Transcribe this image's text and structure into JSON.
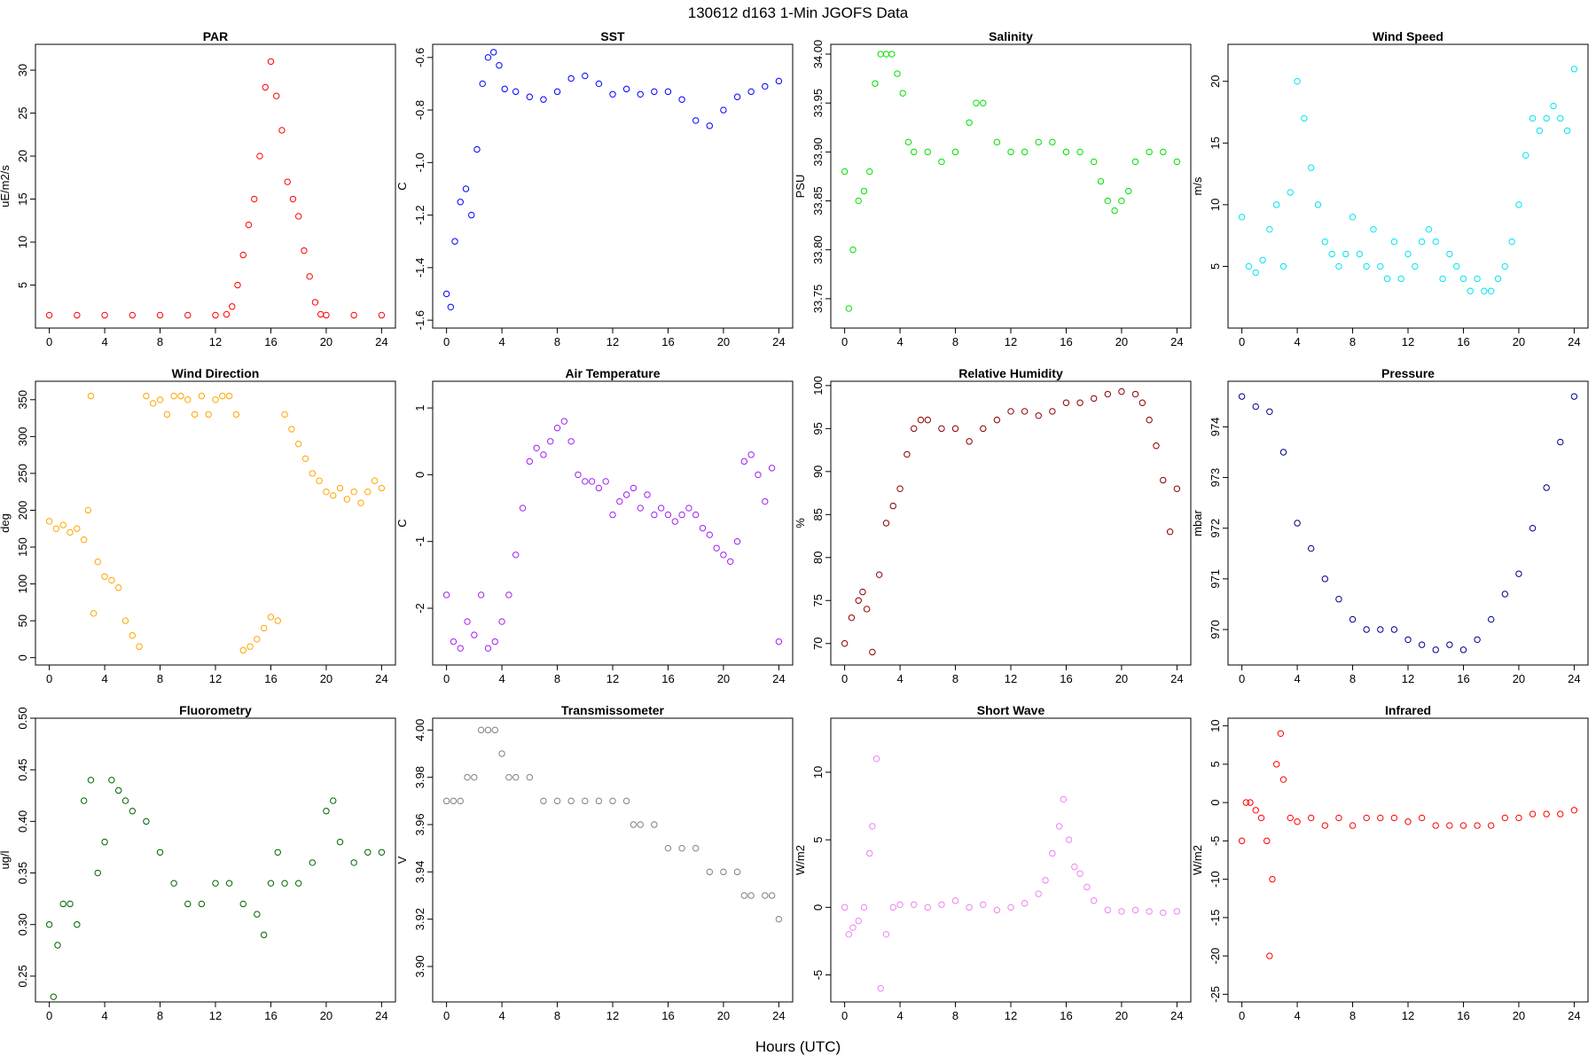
{
  "figure": {
    "title": "130612   d163   1-Min  JGOFS Data",
    "xlabel": "Hours (UTC)"
  },
  "chart_data": [
    {
      "type": "scatter",
      "title": "PAR",
      "ylabel": "uE/m2/s",
      "color": "#ff0000",
      "xlim": [
        -1,
        25
      ],
      "ylim": [
        0,
        33
      ],
      "yticks": [
        5,
        10,
        15,
        20,
        25,
        30
      ],
      "xticks": [
        0,
        4,
        8,
        12,
        16,
        20,
        24
      ],
      "x": [
        0,
        2,
        4,
        6,
        8,
        10,
        12,
        12.8,
        13.2,
        13.6,
        14,
        14.4,
        14.8,
        15.2,
        15.6,
        16,
        16.4,
        16.8,
        17.2,
        17.6,
        18,
        18.4,
        18.8,
        19.2,
        19.6,
        20,
        22,
        24
      ],
      "y": [
        1.5,
        1.5,
        1.5,
        1.5,
        1.5,
        1.5,
        1.5,
        1.6,
        2.5,
        5,
        8.5,
        12,
        15,
        20,
        28,
        31,
        27,
        23,
        17,
        15,
        13,
        9,
        6,
        3,
        1.6,
        1.5,
        1.5,
        1.5
      ]
    },
    {
      "type": "scatter",
      "title": "SST",
      "ylabel": "C",
      "color": "#0000ff",
      "xlim": [
        -1,
        25
      ],
      "ylim": [
        -1.63,
        -0.55
      ],
      "yticks": [
        -1.6,
        -1.4,
        -1.2,
        -1.0,
        -0.8,
        -0.6
      ],
      "xticks": [
        0,
        4,
        8,
        12,
        16,
        20,
        24
      ],
      "x": [
        0,
        0.3,
        0.6,
        1,
        1.4,
        1.8,
        2.2,
        2.6,
        3,
        3.4,
        3.8,
        4.2,
        5,
        6,
        7,
        8,
        9,
        10,
        11,
        12,
        13,
        14,
        15,
        16,
        17,
        18,
        19,
        20,
        21,
        22,
        23,
        24
      ],
      "y": [
        -1.5,
        -1.55,
        -1.3,
        -1.15,
        -1.1,
        -1.2,
        -0.95,
        -0.7,
        -0.6,
        -0.58,
        -0.63,
        -0.72,
        -0.73,
        -0.75,
        -0.76,
        -0.73,
        -0.68,
        -0.67,
        -0.7,
        -0.74,
        -0.72,
        -0.74,
        -0.73,
        -0.73,
        -0.76,
        -0.84,
        -0.86,
        -0.8,
        -0.75,
        -0.73,
        -0.71,
        -0.69
      ]
    },
    {
      "type": "scatter",
      "title": "Salinity",
      "ylabel": "PSU",
      "color": "#00e000",
      "xlim": [
        -1,
        25
      ],
      "ylim": [
        33.72,
        34.01
      ],
      "yticks": [
        33.75,
        33.8,
        33.85,
        33.9,
        33.95,
        34.0
      ],
      "xticks": [
        0,
        4,
        8,
        12,
        16,
        20,
        24
      ],
      "x": [
        0,
        0.3,
        0.6,
        1,
        1.4,
        1.8,
        2.2,
        2.6,
        3,
        3.4,
        3.8,
        4.2,
        4.6,
        5,
        6,
        7,
        8,
        9,
        9.5,
        10,
        11,
        12,
        13,
        14,
        15,
        16,
        17,
        18,
        18.5,
        19,
        19.5,
        20,
        20.5,
        21,
        22,
        23,
        24
      ],
      "y": [
        33.88,
        33.74,
        33.8,
        33.85,
        33.86,
        33.88,
        33.97,
        34.0,
        34.0,
        34.0,
        33.98,
        33.96,
        33.91,
        33.9,
        33.9,
        33.89,
        33.9,
        33.93,
        33.95,
        33.95,
        33.91,
        33.9,
        33.9,
        33.91,
        33.91,
        33.9,
        33.9,
        33.89,
        33.87,
        33.85,
        33.84,
        33.85,
        33.86,
        33.89,
        33.9,
        33.9,
        33.89
      ]
    },
    {
      "type": "scatter",
      "title": "Wind Speed",
      "ylabel": "m/s",
      "color": "#00e5ee",
      "xlim": [
        -1,
        25
      ],
      "ylim": [
        0,
        23
      ],
      "yticks": [
        5,
        10,
        15,
        20
      ],
      "xticks": [
        0,
        4,
        8,
        12,
        16,
        20,
        24
      ],
      "x": [
        0,
        0.5,
        1,
        1.5,
        2,
        2.5,
        3,
        3.5,
        4,
        4.5,
        5,
        5.5,
        6,
        6.5,
        7,
        7.5,
        8,
        8.5,
        9,
        9.5,
        10,
        10.5,
        11,
        11.5,
        12,
        12.5,
        13,
        13.5,
        14,
        14.5,
        15,
        15.5,
        16,
        16.5,
        17,
        17.5,
        18,
        18.5,
        19,
        19.5,
        20,
        20.5,
        21,
        21.5,
        22,
        22.5,
        23,
        23.5,
        24
      ],
      "y": [
        9,
        5,
        4.5,
        5.5,
        8,
        10,
        5,
        11,
        20,
        17,
        13,
        10,
        7,
        6,
        5,
        6,
        9,
        6,
        5,
        8,
        5,
        4,
        7,
        4,
        6,
        5,
        7,
        8,
        7,
        4,
        6,
        5,
        4,
        3,
        4,
        3,
        3,
        4,
        5,
        7,
        10,
        14,
        17,
        16,
        17,
        18,
        17,
        16,
        21
      ]
    },
    {
      "type": "scatter",
      "title": "Wind Direction",
      "ylabel": "deg",
      "color": "#ffa500",
      "xlim": [
        -1,
        25
      ],
      "ylim": [
        -10,
        375
      ],
      "yticks": [
        0,
        50,
        100,
        150,
        200,
        250,
        300,
        350
      ],
      "xticks": [
        0,
        4,
        8,
        12,
        16,
        20,
        24
      ],
      "x": [
        0,
        0.5,
        1,
        1.5,
        2,
        2.5,
        2.8,
        3,
        3.2,
        3.5,
        4,
        4.5,
        5,
        5.5,
        6,
        6.5,
        7,
        7.5,
        8,
        8.5,
        9,
        9.5,
        10,
        10.5,
        11,
        11.5,
        12,
        12.5,
        13,
        13.5,
        14,
        14.5,
        15,
        15.5,
        16,
        16.5,
        17,
        17.5,
        18,
        18.5,
        19,
        19.5,
        20,
        20.5,
        21,
        21.5,
        22,
        22.5,
        23,
        23.5,
        24
      ],
      "y": [
        185,
        175,
        180,
        170,
        175,
        160,
        200,
        355,
        60,
        130,
        110,
        105,
        95,
        50,
        30,
        15,
        355,
        345,
        350,
        330,
        355,
        355,
        350,
        330,
        355,
        330,
        350,
        355,
        355,
        330,
        10,
        15,
        25,
        40,
        55,
        50,
        330,
        310,
        290,
        270,
        250,
        240,
        225,
        220,
        230,
        215,
        225,
        210,
        225,
        240,
        230
      ]
    },
    {
      "type": "scatter",
      "title": "Air Temperature",
      "ylabel": "C",
      "color": "#a020f0",
      "xlim": [
        -1,
        25
      ],
      "ylim": [
        -2.85,
        1.4
      ],
      "yticks": [
        -2,
        -1,
        0,
        1
      ],
      "xticks": [
        0,
        4,
        8,
        12,
        16,
        20,
        24
      ],
      "x": [
        0,
        0.5,
        1,
        1.5,
        2,
        2.5,
        3,
        3.5,
        4,
        4.5,
        5,
        5.5,
        6,
        6.5,
        7,
        7.5,
        8,
        8.5,
        9,
        9.5,
        10,
        10.5,
        11,
        11.5,
        12,
        12.5,
        13,
        13.5,
        14,
        14.5,
        15,
        15.5,
        16,
        16.5,
        17,
        17.5,
        18,
        18.5,
        19,
        19.5,
        20,
        20.5,
        21,
        21.5,
        22,
        22.5,
        23,
        23.5,
        24
      ],
      "y": [
        -1.8,
        -2.5,
        -2.6,
        -2.2,
        -2.4,
        -1.8,
        -2.6,
        -2.5,
        -2.2,
        -1.8,
        -1.2,
        -0.5,
        0.2,
        0.4,
        0.3,
        0.5,
        0.7,
        0.8,
        0.5,
        0,
        -0.1,
        -0.1,
        -0.2,
        -0.1,
        -0.6,
        -0.4,
        -0.3,
        -0.2,
        -0.5,
        -0.3,
        -0.6,
        -0.5,
        -0.6,
        -0.7,
        -0.6,
        -0.5,
        -0.6,
        -0.8,
        -0.9,
        -1.1,
        -1.2,
        -1.3,
        -1.0,
        0.2,
        0.3,
        0,
        -0.4,
        0.1,
        -2.5
      ]
    },
    {
      "type": "scatter",
      "title": "Relative Humidity",
      "ylabel": "%",
      "color": "#8b0000",
      "xlim": [
        -1,
        25
      ],
      "ylim": [
        67.5,
        100.5
      ],
      "yticks": [
        70,
        75,
        80,
        85,
        90,
        95,
        100
      ],
      "xticks": [
        0,
        4,
        8,
        12,
        16,
        20,
        24
      ],
      "x": [
        0,
        0.5,
        1,
        1.3,
        1.6,
        2,
        2.5,
        3,
        3.5,
        4,
        4.5,
        5,
        5.5,
        6,
        7,
        8,
        9,
        10,
        11,
        12,
        13,
        14,
        15,
        16,
        17,
        18,
        19,
        20,
        21,
        21.5,
        22,
        22.5,
        23,
        23.5,
        24
      ],
      "y": [
        70,
        73,
        75,
        76,
        74,
        69,
        78,
        84,
        86,
        88,
        92,
        95,
        96,
        96,
        95,
        95,
        93.5,
        95,
        96,
        97,
        97,
        96.5,
        97,
        98,
        98,
        98.5,
        99,
        99.3,
        99,
        98,
        96,
        93,
        89,
        83,
        88
      ]
    },
    {
      "type": "scatter",
      "title": "Pressure",
      "ylabel": "mbar",
      "color": "#00008b",
      "xlim": [
        -1,
        25
      ],
      "ylim": [
        969.3,
        974.9
      ],
      "yticks": [
        970,
        971,
        972,
        973,
        974
      ],
      "xticks": [
        0,
        4,
        8,
        12,
        16,
        20,
        24
      ],
      "x": [
        0,
        1,
        2,
        3,
        4,
        5,
        6,
        7,
        8,
        9,
        10,
        11,
        12,
        13,
        14,
        15,
        16,
        17,
        18,
        19,
        20,
        21,
        22,
        23,
        24
      ],
      "y": [
        974.6,
        974.4,
        974.3,
        973.5,
        972.1,
        971.6,
        971.0,
        970.6,
        970.2,
        970.0,
        970.0,
        970.0,
        969.8,
        969.7,
        969.6,
        969.7,
        969.6,
        969.8,
        970.2,
        970.7,
        971.1,
        972.0,
        972.8,
        973.7,
        974.6
      ]
    },
    {
      "type": "scatter",
      "title": "Fluorometry",
      "ylabel": "ug/l",
      "color": "#006400",
      "xlim": [
        -1,
        25
      ],
      "ylim": [
        0.225,
        0.5
      ],
      "yticks": [
        0.25,
        0.3,
        0.35,
        0.4,
        0.45,
        0.5
      ],
      "xticks": [
        0,
        4,
        8,
        12,
        16,
        20,
        24
      ],
      "x": [
        0,
        0.3,
        0.6,
        1,
        1.5,
        2,
        2.5,
        3,
        3.5,
        4,
        4.5,
        5,
        5.5,
        6,
        7,
        8,
        9,
        10,
        11,
        12,
        13,
        14,
        15,
        15.5,
        16,
        16.5,
        17,
        18,
        19,
        20,
        20.5,
        21,
        22,
        23,
        24
      ],
      "y": [
        0.3,
        0.23,
        0.28,
        0.32,
        0.32,
        0.3,
        0.42,
        0.44,
        0.35,
        0.38,
        0.44,
        0.43,
        0.42,
        0.41,
        0.4,
        0.37,
        0.34,
        0.32,
        0.32,
        0.34,
        0.34,
        0.32,
        0.31,
        0.29,
        0.34,
        0.37,
        0.34,
        0.34,
        0.36,
        0.41,
        0.42,
        0.38,
        0.36,
        0.37,
        0.37
      ]
    },
    {
      "type": "scatter",
      "title": "Transmissometer",
      "ylabel": "V",
      "color": "#808080",
      "xlim": [
        -1,
        25
      ],
      "ylim": [
        3.885,
        4.005
      ],
      "yticks": [
        3.9,
        3.92,
        3.94,
        3.96,
        3.98,
        4.0
      ],
      "xticks": [
        0,
        4,
        8,
        12,
        16,
        20,
        24
      ],
      "x": [
        0,
        0.5,
        1,
        1.5,
        2,
        2.5,
        3,
        3.5,
        4,
        4.5,
        5,
        6,
        7,
        8,
        9,
        10,
        11,
        12,
        13,
        13.5,
        14,
        15,
        16,
        17,
        18,
        19,
        20,
        21,
        21.5,
        22,
        23,
        23.5,
        24
      ],
      "y": [
        3.97,
        3.97,
        3.97,
        3.98,
        3.98,
        4.0,
        4.0,
        4.0,
        3.99,
        3.98,
        3.98,
        3.98,
        3.97,
        3.97,
        3.97,
        3.97,
        3.97,
        3.97,
        3.97,
        3.96,
        3.96,
        3.96,
        3.95,
        3.95,
        3.95,
        3.94,
        3.94,
        3.94,
        3.93,
        3.93,
        3.93,
        3.93,
        3.92
      ]
    },
    {
      "type": "scatter",
      "title": "Short Wave",
      "ylabel": "W/m2",
      "color": "#ee82ee",
      "xlim": [
        -1,
        25
      ],
      "ylim": [
        -7,
        14
      ],
      "yticks": [
        -5,
        0,
        5,
        10
      ],
      "xticks": [
        0,
        4,
        8,
        12,
        16,
        20,
        24
      ],
      "x": [
        0,
        0.3,
        0.6,
        1,
        1.4,
        1.8,
        2,
        2.3,
        2.6,
        3,
        3.5,
        4,
        5,
        6,
        7,
        8,
        9,
        10,
        11,
        12,
        13,
        14,
        14.5,
        15,
        15.5,
        15.8,
        16.2,
        16.6,
        17,
        17.5,
        18,
        19,
        20,
        21,
        22,
        23,
        24
      ],
      "y": [
        0,
        -2,
        -1.5,
        -1,
        0,
        4,
        6,
        11,
        -6,
        -2,
        0,
        0.2,
        0.2,
        0,
        0.2,
        0.5,
        0,
        0.2,
        -0.2,
        0,
        0.3,
        1,
        2,
        4,
        6,
        8,
        5,
        3,
        2.5,
        1.5,
        0.5,
        -0.2,
        -0.3,
        -0.2,
        -0.3,
        -0.4,
        -0.3
      ]
    },
    {
      "type": "scatter",
      "title": "Infrared",
      "ylabel": "W/m2",
      "color": "#ff0000",
      "xlim": [
        -1,
        25
      ],
      "ylim": [
        -26,
        11
      ],
      "yticks": [
        -25,
        -20,
        -15,
        -10,
        -5,
        0,
        5,
        10
      ],
      "xticks": [
        0,
        4,
        8,
        12,
        16,
        20,
        24
      ],
      "x": [
        0,
        0.3,
        0.6,
        1,
        1.4,
        1.8,
        2,
        2.2,
        2.5,
        2.8,
        3,
        3.5,
        4,
        5,
        6,
        7,
        8,
        9,
        10,
        11,
        12,
        13,
        14,
        15,
        16,
        17,
        18,
        19,
        20,
        21,
        22,
        23,
        24
      ],
      "y": [
        -5,
        0,
        0,
        -1,
        -2,
        -5,
        -20,
        -10,
        5,
        9,
        3,
        -2,
        -2.5,
        -2,
        -3,
        -2,
        -3,
        -2,
        -2,
        -2,
        -2.5,
        -2,
        -3,
        -3,
        -3,
        -3,
        -3,
        -2,
        -2,
        -1.5,
        -1.5,
        -1.5,
        -1
      ]
    }
  ]
}
